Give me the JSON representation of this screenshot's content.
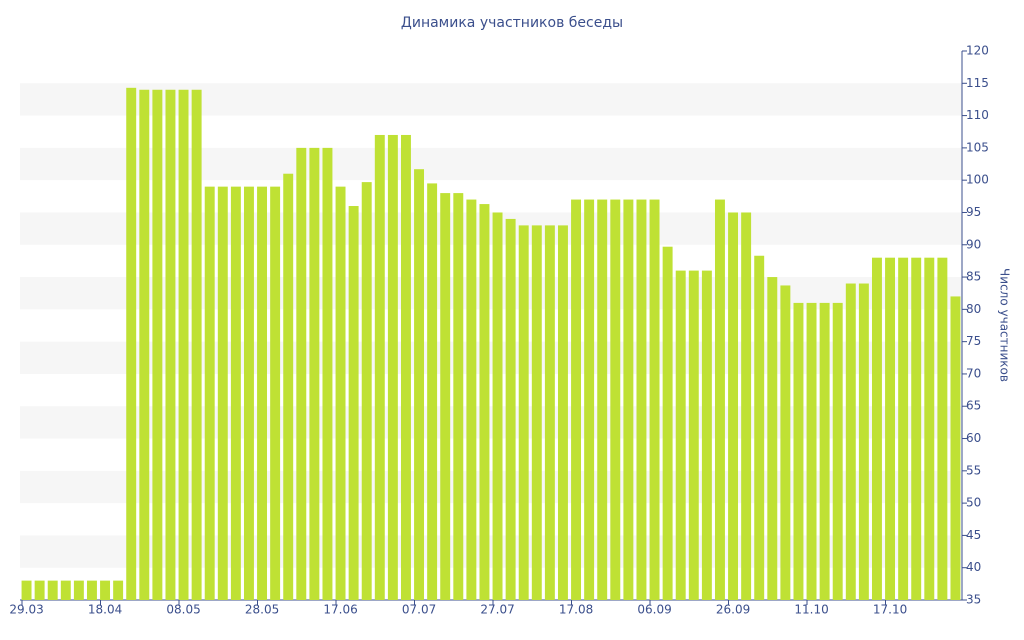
{
  "chart_data": {
    "type": "bar",
    "title": "Динамика участников беседы",
    "y_label": "Число участников",
    "categories": [
      "29.03",
      null,
      null,
      null,
      null,
      null,
      "18.04",
      null,
      null,
      null,
      null,
      null,
      "08.05",
      null,
      null,
      null,
      null,
      null,
      "28.05",
      null,
      null,
      null,
      null,
      null,
      "17.06",
      null,
      null,
      null,
      null,
      null,
      "07.07",
      null,
      null,
      null,
      null,
      null,
      "27.07",
      null,
      null,
      null,
      null,
      null,
      "17.08",
      null,
      null,
      null,
      null,
      null,
      "06.09",
      null,
      null,
      null,
      null,
      null,
      "26.09",
      null,
      null,
      null,
      null,
      null,
      "11.10",
      null,
      null,
      null,
      null,
      null,
      "17.10",
      null,
      null,
      null,
      null,
      null
    ],
    "values": [
      38,
      38,
      38,
      38,
      38,
      38,
      38,
      38,
      114.3,
      114,
      114,
      114,
      114,
      114,
      99,
      99,
      99,
      99,
      99,
      99,
      101,
      105,
      105,
      105,
      99,
      96,
      99.7,
      107,
      107,
      107,
      101.7,
      99.5,
      98,
      98,
      97,
      96.3,
      95,
      94,
      93,
      93,
      93,
      93,
      97,
      97,
      97,
      97,
      97,
      97,
      97,
      89.7,
      86,
      86,
      86,
      97,
      95,
      95,
      88.3,
      85,
      83.7,
      81,
      81,
      81,
      81,
      84,
      84,
      88,
      88,
      88,
      88,
      88,
      88,
      82
    ],
    "color": "#bfe134",
    "ylim": [
      35,
      120
    ],
    "yticks": [
      35,
      40,
      45,
      50,
      55,
      60,
      65,
      70,
      75,
      80,
      85,
      90,
      95,
      100,
      105,
      110,
      115,
      120
    ],
    "grid": "bands",
    "y_axis_side": "right"
  }
}
